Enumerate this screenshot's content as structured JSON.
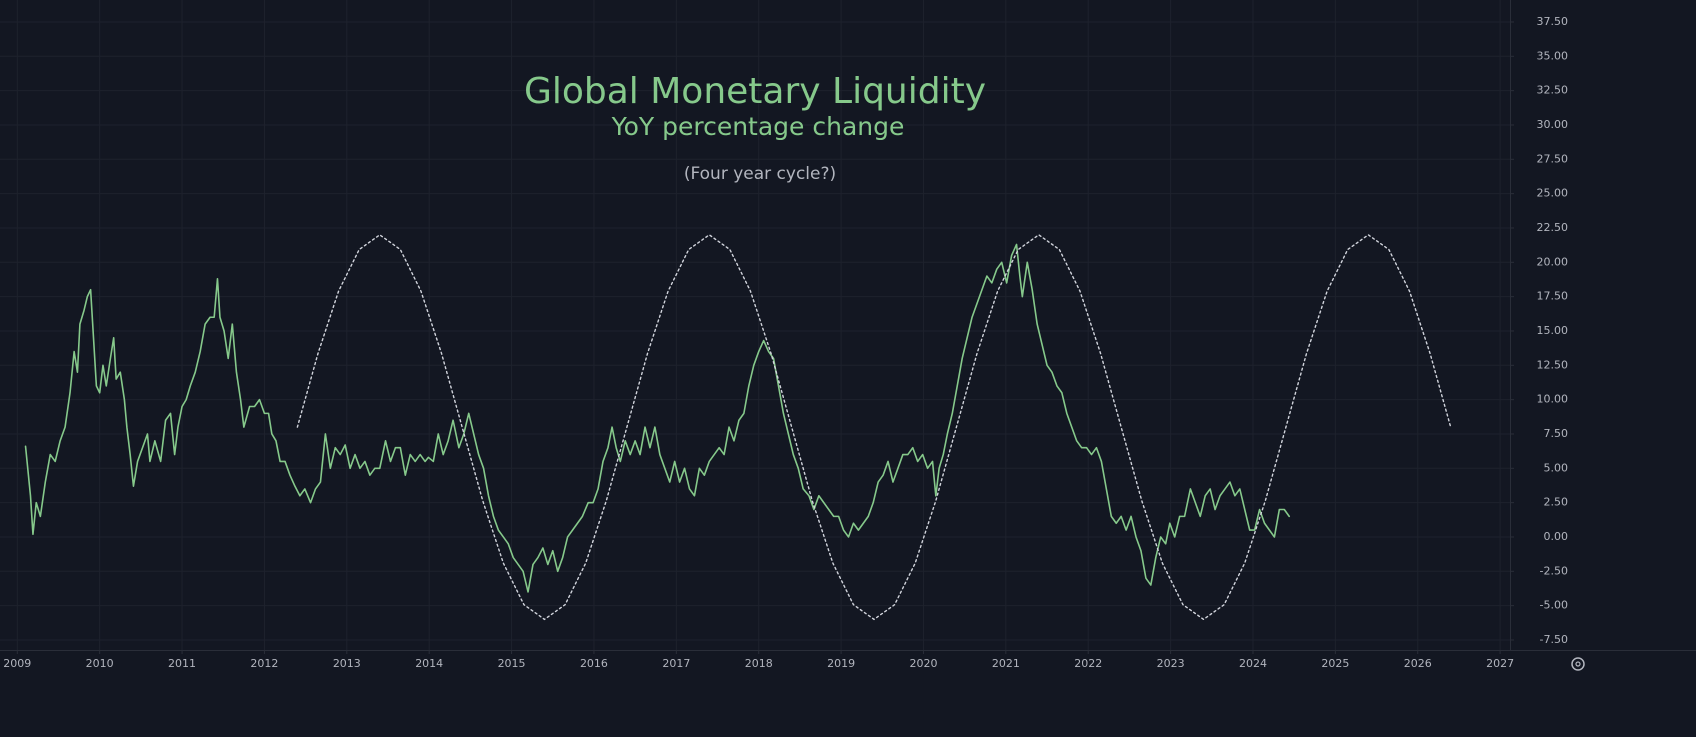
{
  "chart_data": {
    "type": "line",
    "title": "Global Monetary Liquidity",
    "subtitle": "YoY percentage change",
    "annotation": "(Four year cycle?)",
    "xlim": [
      2008.79,
      2027.12
    ],
    "ylim": [
      -8.23,
      39.1
    ],
    "xticks": [
      2009,
      2010,
      2011,
      2012,
      2013,
      2014,
      2015,
      2016,
      2017,
      2018,
      2019,
      2020,
      2021,
      2022,
      2023,
      2024,
      2025,
      2026,
      2027
    ],
    "yticks": [
      {
        "value": -7.5,
        "label": "-7.50"
      },
      {
        "value": -5,
        "label": "-5.00"
      },
      {
        "value": -2.5,
        "label": "-2.50"
      },
      {
        "value": 0,
        "label": "0.00"
      },
      {
        "value": 2.5,
        "label": "2.50"
      },
      {
        "value": 5,
        "label": "5.00"
      },
      {
        "value": 7.5,
        "label": "7.50"
      },
      {
        "value": 10,
        "label": "10.00"
      },
      {
        "value": 12.5,
        "label": "12.50"
      },
      {
        "value": 15,
        "label": "15.00"
      },
      {
        "value": 17.5,
        "label": "17.50"
      },
      {
        "value": 20,
        "label": "20.00"
      },
      {
        "value": 22.5,
        "label": "22.50"
      },
      {
        "value": 25,
        "label": "25.00"
      },
      {
        "value": 27.5,
        "label": "27.50"
      },
      {
        "value": 30,
        "label": "30.00"
      },
      {
        "value": 32.5,
        "label": "32.50"
      },
      {
        "value": 35,
        "label": "35.00"
      },
      {
        "value": 37.5,
        "label": "37.50"
      }
    ],
    "grid": true,
    "series": [
      {
        "color": "#86c98b",
        "style": "solid",
        "x": [
          2009.1,
          2009.16,
          2009.19,
          2009.23,
          2009.28,
          2009.34,
          2009.4,
          2009.46,
          2009.52,
          2009.58,
          2009.64,
          2009.69,
          2009.73,
          2009.76,
          2009.81,
          2009.85,
          2009.89,
          2009.92,
          2009.96,
          2010.0,
          2010.04,
          2010.08,
          2010.13,
          2010.17,
          2010.2,
          2010.25,
          2010.3,
          2010.33,
          2010.37,
          2010.41,
          2010.46,
          2010.52,
          2010.58,
          2010.61,
          2010.67,
          2010.74,
          2010.8,
          2010.86,
          2010.91,
          2010.95,
          2011.0,
          2011.05,
          2011.1,
          2011.16,
          2011.22,
          2011.28,
          2011.34,
          2011.39,
          2011.43,
          2011.46,
          2011.51,
          2011.56,
          2011.61,
          2011.66,
          2011.71,
          2011.75,
          2011.82,
          2011.88,
          2011.94,
          2012.0,
          2012.05,
          2012.09,
          2012.14,
          2012.19,
          2012.25,
          2012.31,
          2012.37,
          2012.43,
          2012.49,
          2012.56,
          2012.62,
          2012.68,
          2012.74,
          2012.8,
          2012.86,
          2012.92,
          2012.98,
          2013.04,
          2013.1,
          2013.16,
          2013.22,
          2013.28,
          2013.34,
          2013.4,
          2013.47,
          2013.53,
          2013.59,
          2013.65,
          2013.71,
          2013.77,
          2013.83,
          2013.89,
          2013.95,
          2013.99,
          2014.05,
          2014.11,
          2014.17,
          2014.23,
          2014.29,
          2014.36,
          2014.42,
          2014.48,
          2014.54,
          2014.6,
          2014.66,
          2014.72,
          2014.78,
          2014.84,
          2014.9,
          2014.96,
          2015.02,
          2015.08,
          2015.14,
          2015.2,
          2015.26,
          2015.32,
          2015.38,
          2015.44,
          2015.5,
          2015.56,
          2015.62,
          2015.68,
          2015.74,
          2015.8,
          2015.86,
          2015.93,
          2015.99,
          2016.05,
          2016.11,
          2016.17,
          2016.22,
          2016.27,
          2016.32,
          2016.38,
          2016.44,
          2016.5,
          2016.56,
          2016.62,
          2016.68,
          2016.74,
          2016.8,
          2016.86,
          2016.92,
          2016.98,
          2017.04,
          2017.1,
          2017.16,
          2017.22,
          2017.28,
          2017.34,
          2017.4,
          2017.46,
          2017.52,
          2017.58,
          2017.64,
          2017.7,
          2017.76,
          2017.82,
          2017.88,
          2017.94,
          2018.0,
          2018.06,
          2018.12,
          2018.18,
          2018.24,
          2018.3,
          2018.36,
          2018.42,
          2018.48,
          2018.54,
          2018.61,
          2018.67,
          2018.73,
          2018.79,
          2018.85,
          2018.91,
          2018.97,
          2019.03,
          2019.09,
          2019.15,
          2019.21,
          2019.27,
          2019.33,
          2019.39,
          2019.45,
          2019.51,
          2019.57,
          2019.63,
          2019.69,
          2019.75,
          2019.81,
          2019.87,
          2019.93,
          2019.99,
          2020.05,
          2020.11,
          2020.15,
          2020.19,
          2020.24,
          2020.29,
          2020.35,
          2020.41,
          2020.47,
          2020.53,
          2020.59,
          2020.65,
          2020.71,
          2020.77,
          2020.83,
          2020.89,
          2020.95,
          2021.01,
          2021.07,
          2021.13,
          2021.17,
          2021.2,
          2021.26,
          2021.32,
          2021.38,
          2021.44,
          2021.5,
          2021.56,
          2021.62,
          2021.68,
          2021.74,
          2021.8,
          2021.86,
          2021.92,
          2021.98,
          2022.04,
          2022.1,
          2022.16,
          2022.22,
          2022.28,
          2022.34,
          2022.4,
          2022.46,
          2022.52,
          2022.58,
          2022.64,
          2022.7,
          2022.76,
          2022.82,
          2022.88,
          2022.94,
          2022.99,
          2023.05,
          2023.11,
          2023.17,
          2023.24,
          2023.3,
          2023.36,
          2023.42,
          2023.48,
          2023.54,
          2023.6,
          2023.66,
          2023.72,
          2023.78,
          2023.84,
          2023.9,
          2023.96,
          2024.02,
          2024.08,
          2024.14,
          2024.2,
          2024.26,
          2024.32,
          2024.38,
          2024.44
        ],
        "values": [
          6.6,
          3,
          0.2,
          2.5,
          1.5,
          4,
          6,
          5.5,
          7,
          8,
          10.5,
          13.5,
          12,
          15.5,
          16.5,
          17.5,
          18,
          15,
          11,
          10.5,
          12.5,
          11,
          13,
          14.5,
          11.5,
          12,
          10,
          8,
          6,
          3.7,
          5.5,
          6.5,
          7.5,
          5.5,
          7,
          5.5,
          8.5,
          9,
          6,
          8,
          9.5,
          10,
          11,
          12,
          13.5,
          15.5,
          16,
          16,
          18.8,
          16,
          15,
          13,
          15.5,
          12,
          10,
          8,
          9.5,
          9.5,
          10,
          9,
          9,
          7.5,
          7,
          5.5,
          5.5,
          4.5,
          3.7,
          3,
          3.5,
          2.5,
          3.5,
          4,
          7.5,
          5,
          6.5,
          6,
          6.7,
          5,
          6,
          5,
          5.5,
          4.5,
          5,
          5,
          7,
          5.5,
          6.5,
          6.5,
          4.5,
          6,
          5.5,
          6,
          5.5,
          5.8,
          5.5,
          7.5,
          6,
          7,
          8.5,
          6.5,
          7.5,
          9,
          7.5,
          6,
          5,
          3,
          1.5,
          0.5,
          0,
          -0.5,
          -1.5,
          -2,
          -2.5,
          -4,
          -2,
          -1.5,
          -0.8,
          -2,
          -1,
          -2.5,
          -1.5,
          0,
          0.5,
          1,
          1.5,
          2.5,
          2.5,
          3.5,
          5.5,
          6.5,
          8,
          6.5,
          5.5,
          7,
          6,
          7,
          6,
          8,
          6.5,
          8,
          6,
          5,
          4,
          5.5,
          4,
          5,
          3.5,
          3,
          5,
          4.5,
          5.5,
          6,
          6.5,
          6,
          8,
          7,
          8.5,
          9,
          11,
          12.5,
          13.5,
          14.3,
          13.5,
          13,
          11,
          9,
          7.5,
          6,
          5,
          3.5,
          3,
          2,
          3,
          2.5,
          2,
          1.5,
          1.5,
          0.5,
          0,
          1,
          0.5,
          1,
          1.5,
          2.5,
          4,
          4.5,
          5.5,
          4,
          5,
          6,
          6,
          6.5,
          5.5,
          6,
          5,
          5.5,
          3,
          5,
          6,
          7.5,
          9,
          11,
          13,
          14.5,
          16,
          17,
          18,
          19,
          18.5,
          19.5,
          20,
          18.5,
          20.5,
          21.3,
          19,
          17.5,
          20,
          18,
          15.5,
          14,
          12.5,
          12,
          11,
          10.5,
          9,
          8,
          7,
          6.5,
          6.5,
          6,
          6.5,
          5.5,
          3.5,
          1.5,
          1,
          1.5,
          0.5,
          1.5,
          0,
          -1,
          -3,
          -3.5,
          -1.5,
          0,
          -0.5,
          1,
          0,
          1.5,
          1.5,
          3.5,
          2.5,
          1.5,
          3,
          3.5,
          2,
          3,
          3.5,
          4,
          3,
          3.5,
          2,
          0.5,
          0.5,
          2,
          1,
          0.5,
          0,
          2,
          2,
          1.5
        ]
      },
      {
        "color": "#d1d4dc",
        "style": "dotted",
        "x": [
          2012.4,
          2012.65,
          2012.9,
          2013.15,
          2013.4,
          2013.65,
          2013.9,
          2014.15,
          2014.4,
          2014.65,
          2014.9,
          2015.15,
          2015.4,
          2015.65,
          2015.9,
          2016.15,
          2016.4,
          2016.65,
          2016.9,
          2017.15,
          2017.4,
          2017.65,
          2017.9,
          2018.15,
          2018.4,
          2018.65,
          2018.9,
          2019.15,
          2019.4,
          2019.65,
          2019.9,
          2020.15,
          2020.4,
          2020.65,
          2020.9,
          2021.15,
          2021.4,
          2021.65,
          2021.9,
          2022.15,
          2022.4,
          2022.65,
          2022.9,
          2023.15,
          2023.4,
          2023.65,
          2023.9,
          2024.15,
          2024.4,
          2024.65,
          2024.9,
          2025.15,
          2025.4,
          2025.65,
          2025.9,
          2026.15,
          2026.4
        ],
        "values": [
          8,
          13.36,
          17.9,
          20.93,
          22,
          20.93,
          17.9,
          13.36,
          8,
          2.64,
          -1.9,
          -4.93,
          -6,
          -4.93,
          -1.9,
          2.64,
          8,
          13.36,
          17.9,
          20.93,
          22,
          20.93,
          17.9,
          13.36,
          8,
          2.64,
          -1.9,
          -4.93,
          -6,
          -4.93,
          -1.9,
          2.64,
          8,
          13.36,
          17.9,
          20.93,
          22,
          20.93,
          17.9,
          13.36,
          8,
          2.64,
          -1.9,
          -4.93,
          -6,
          -4.93,
          -1.9,
          2.64,
          8,
          13.36,
          17.9,
          20.93,
          22,
          20.93,
          17.9,
          13.36,
          8
        ]
      }
    ]
  }
}
